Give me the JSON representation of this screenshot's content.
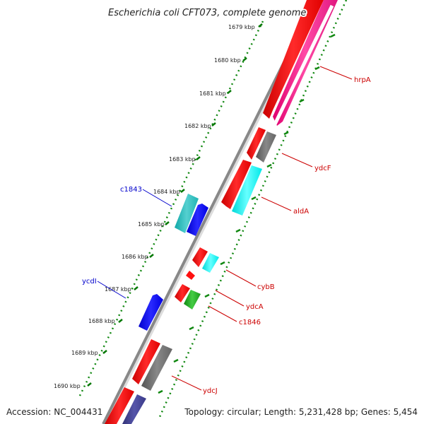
{
  "title": "Escherichia coli CFT073, complete genome",
  "footer": {
    "accession": "Accession: NC_004431",
    "info": "Topology: circular; Length: 5,231,428 bp; Genes: 5,454"
  },
  "colors": {
    "forward_gene": "#ff0000",
    "reverse_label": "#0000cc",
    "backbone": "#888888",
    "tick": "#007700",
    "dot": "#118811"
  },
  "kbp_labels": [
    "1679 kbp",
    "1680 kbp",
    "1681 kbp",
    "1682 kbp",
    "1683 kbp",
    "1684 kbp",
    "1685 kbp",
    "1686 kbp",
    "1687 kbp",
    "1688 kbp",
    "1689 kbp",
    "1690 kbp"
  ],
  "gene_labels": [
    {
      "text": "hrpA",
      "color": "#cc0000"
    },
    {
      "text": "ydcF",
      "color": "#cc0000"
    },
    {
      "text": "aldA",
      "color": "#cc0000"
    },
    {
      "text": "cybB",
      "color": "#cc0000"
    },
    {
      "text": "ydcA",
      "color": "#cc0000"
    },
    {
      "text": "c1846",
      "color": "#cc0000"
    },
    {
      "text": "ydcJ",
      "color": "#cc0000"
    },
    {
      "text": "c1843",
      "color": "#0000cc"
    },
    {
      "text": "ycdI",
      "color": "#0000cc"
    }
  ]
}
